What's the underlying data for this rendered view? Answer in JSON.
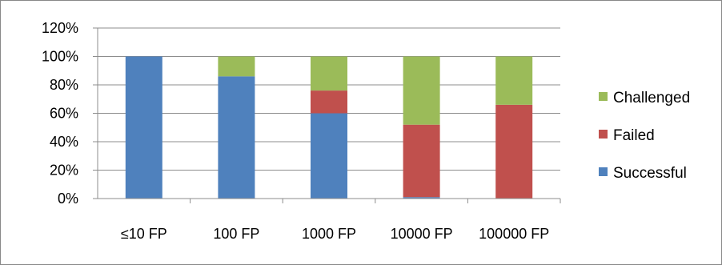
{
  "chart_data": {
    "type": "bar",
    "stacked": true,
    "title": "",
    "xlabel": "",
    "ylabel": "",
    "ylim": [
      0,
      120
    ],
    "y_ticks": [
      "0%",
      "20%",
      "40%",
      "60%",
      "80%",
      "100%",
      "120%"
    ],
    "grid": true,
    "legend_position": "right",
    "categories": [
      "≤10 FP",
      "100 FP",
      "1000 FP",
      "10000 FP",
      "100000 FP"
    ],
    "series": [
      {
        "name": "Successful",
        "color": "#4f81bd",
        "values": [
          100,
          86,
          60,
          1,
          0
        ]
      },
      {
        "name": "Failed",
        "color": "#c0504d",
        "values": [
          0,
          0,
          16,
          51,
          66
        ]
      },
      {
        "name": "Challenged",
        "color": "#9bbb59",
        "values": [
          0,
          14,
          24,
          48,
          34
        ]
      }
    ]
  }
}
